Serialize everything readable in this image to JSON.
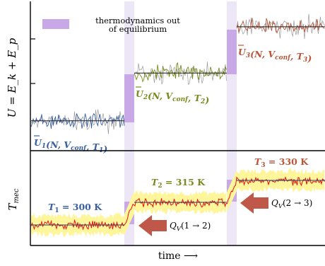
{
  "figure": {
    "top_ylabel": "U = E_k + E_p",
    "bottom_ylabel": "T_mec",
    "xlabel": "time ⟶",
    "legend_text_line1": "thermodynamics out",
    "legend_text_line2": "of equilibrium",
    "colors": {
      "phase1": "#3a5fa0",
      "phase2": "#7a8a1e",
      "phase3": "#b8553a",
      "noneq_band": "#c9b8ea",
      "noneq_band_light": "#ece6f7",
      "temp_line": "#e81010",
      "temp_envelope": "#fff59a",
      "step_block": "#c8a8e6",
      "heat_arrow": "#c0584a",
      "mean_line": "#1f3b66",
      "axis": "#000000"
    },
    "top_panel": {
      "phases": [
        {
          "label_main": "U",
          "label_sub": "1",
          "label_rest": "(N, V",
          "label_conf": "conf",
          "label_T": ", T",
          "label_T_sub": "1",
          "mean_level": 0.2
        },
        {
          "label_main": "U",
          "label_sub": "2",
          "label_rest": "(N, V",
          "label_conf": "conf",
          "label_T": ", T",
          "label_T_sub": "2",
          "mean_level": 0.52
        },
        {
          "label_main": "U",
          "label_sub": "3",
          "label_rest": "(N, V",
          "label_conf": "conf",
          "label_T": ", T",
          "label_T_sub": "3",
          "mean_level": 0.83
        }
      ]
    },
    "bottom_panel": {
      "temperatures": [
        {
          "label": "T",
          "sub": "1",
          "value": "= 300 K"
        },
        {
          "label": "T",
          "sub": "2",
          "value": "= 315 K"
        },
        {
          "label": "T",
          "sub": "3",
          "value": "= 330 K"
        }
      ],
      "heat_arrows": [
        {
          "text": "Q",
          "sub": "V",
          "args": "(1 → 2)"
        },
        {
          "text": "Q",
          "sub": "V",
          "args": "(2 → 3)"
        }
      ]
    }
  }
}
